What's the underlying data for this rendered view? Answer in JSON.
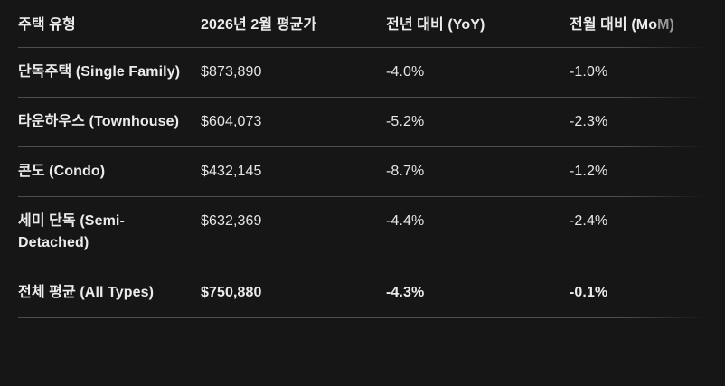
{
  "theme": {
    "background": "#161616",
    "text_primary": "#ececec",
    "text_faded": "#9a9a9a",
    "divider": "#4d4d4d"
  },
  "header_mom": {
    "main": "전월 대비 (Mo",
    "faded": "M)"
  },
  "chart_data": {
    "type": "table",
    "title": "",
    "columns": [
      "주택 유형",
      "2026년 2월 평균가",
      "전년 대비 (YoY)",
      "전월 대비 (MoM)"
    ],
    "rows": [
      [
        "단독주택 (Single Family)",
        "$873,890",
        "-4.0%",
        "-1.0%"
      ],
      [
        "타운하우스 (Townhouse)",
        "$604,073",
        "-5.2%",
        "-2.3%"
      ],
      [
        "콘도 (Condo)",
        "$432,145",
        "-8.7%",
        "-1.2%"
      ],
      [
        "세미 단독 (Semi-Detached)",
        "$632,369",
        "-4.4%",
        "-2.4%"
      ],
      [
        "전체 평균 (All Types)",
        "$750,880",
        "-4.3%",
        "-0.1%"
      ]
    ],
    "notes": "Last row (전체 평균) rendered fully bold; tail of last header cell rendered faded as if streaming"
  }
}
